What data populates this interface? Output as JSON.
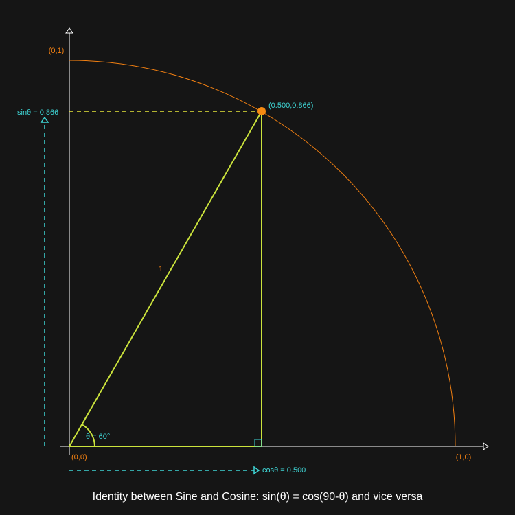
{
  "labels": {
    "y_unit": "(0,1)",
    "origin": "(0,0)",
    "x_unit": "(1,0)",
    "point": "(0.500,0.866)",
    "sin": "sinθ = 0.866",
    "cos": "cosθ = 0.500",
    "hypotenuse": "1",
    "angle": "θ = 60°"
  },
  "caption": "Identity between Sine and Cosine: sin(θ) = cos(90-θ) and vice versa"
}
